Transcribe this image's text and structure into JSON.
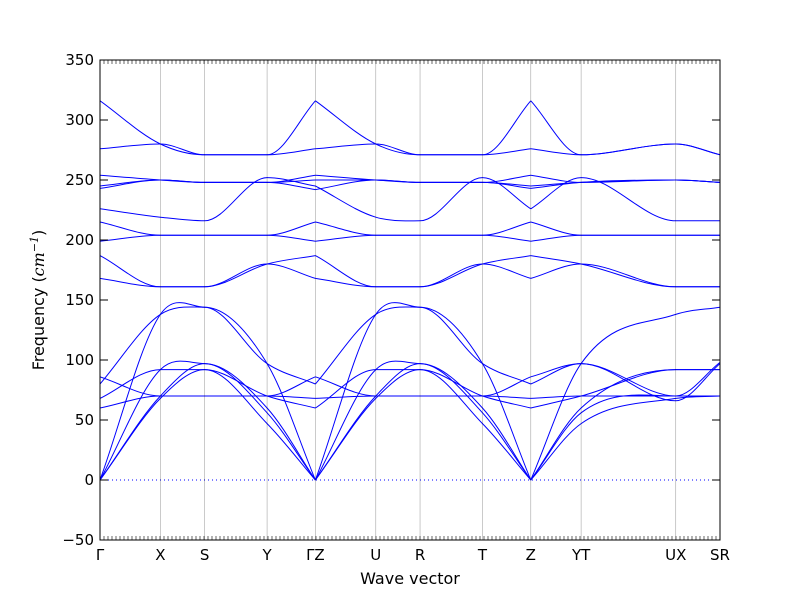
{
  "chart_data": {
    "type": "line",
    "xlabel": "Wave vector",
    "ylabel": "Frequency (cm⁻¹)",
    "ylabel_prefix": "Frequency (",
    "ylabel_unit": "cm",
    "ylabel_exp": "−1",
    "ylabel_suffix": ")",
    "xlim": [
      0,
      1
    ],
    "ylim": [
      -50,
      350
    ],
    "yticks": [
      -50,
      0,
      50,
      100,
      150,
      200,
      250,
      300,
      350
    ],
    "ytick_labels": [
      "−50",
      "0",
      "50",
      "100",
      "150",
      "200",
      "250",
      "300",
      "350"
    ],
    "xticks": [
      {
        "label": "Γ",
        "x": 0.0
      },
      {
        "label": "X",
        "x": 0.0974
      },
      {
        "label": "S",
        "x": 0.1688
      },
      {
        "label": "Y",
        "x": 0.2695
      },
      {
        "label": "ΓZ",
        "x": 0.3474
      },
      {
        "label": "U",
        "x": 0.4448
      },
      {
        "label": "R",
        "x": 0.5162
      },
      {
        "label": "T",
        "x": 0.6169
      },
      {
        "label": "Z",
        "x": 0.6948
      },
      {
        "label": "YT",
        "x": 0.776
      },
      {
        "label": "UX",
        "x": 0.9286
      },
      {
        "label": "SR",
        "x": 1.0
      }
    ],
    "zero_line": {
      "y": 0,
      "style": "dotted"
    },
    "line_color": "#0000ff",
    "grid": false,
    "series": [
      {
        "x": [
          0.0,
          0.0974,
          0.1688,
          0.2695,
          0.3474
        ],
        "y": [
          0,
          68,
          92,
          47,
          0
        ]
      },
      {
        "x": [
          0.0,
          0.0974,
          0.1688,
          0.2695,
          0.3474
        ],
        "y": [
          0,
          70,
          97,
          56,
          0
        ]
      },
      {
        "x": [
          0.0,
          0.0974,
          0.1688,
          0.2695,
          0.3474
        ],
        "y": [
          0,
          92,
          97,
          60,
          0
        ]
      },
      {
        "x": [
          0.0,
          0.0974,
          0.1688,
          0.2695,
          0.3474
        ],
        "y": [
          0,
          138,
          144,
          97,
          0
        ]
      },
      {
        "x": [
          0.0,
          0.0974,
          0.1688,
          0.2695,
          0.3474
        ],
        "y": [
          60,
          70,
          70,
          70,
          68
        ]
      },
      {
        "x": [
          0.0,
          0.0974,
          0.1688,
          0.2695,
          0.3474
        ],
        "y": [
          68,
          92,
          92,
          70,
          60
        ]
      },
      {
        "x": [
          0.0,
          0.0974,
          0.1688,
          0.2695,
          0.3474
        ],
        "y": [
          80,
          138,
          144,
          97,
          80
        ]
      },
      {
        "x": [
          0.0,
          0.0974,
          0.1688,
          0.2695,
          0.3474
        ],
        "y": [
          86,
          70,
          70,
          70,
          86
        ]
      },
      {
        "x": [
          0.0,
          0.0974,
          0.1688,
          0.2695,
          0.3474
        ],
        "y": [
          168,
          161,
          161,
          180,
          168
        ]
      },
      {
        "x": [
          0.0,
          0.0974,
          0.1688,
          0.2695,
          0.3474
        ],
        "y": [
          187,
          161,
          161,
          180,
          187
        ]
      },
      {
        "x": [
          0.0,
          0.0974,
          0.1688,
          0.2695,
          0.3474
        ],
        "y": [
          199,
          204,
          204,
          204,
          199
        ]
      },
      {
        "x": [
          0.0,
          0.0974,
          0.1688,
          0.2695,
          0.3474
        ],
        "y": [
          215,
          204,
          204,
          204,
          215
        ]
      },
      {
        "x": [
          0.0,
          0.0974,
          0.1688,
          0.2695,
          0.3474
        ],
        "y": [
          226,
          219,
          216,
          252,
          245
        ]
      },
      {
        "x": [
          0.0,
          0.0974,
          0.1688,
          0.2695,
          0.3474
        ],
        "y": [
          243,
          250,
          248,
          248,
          242
        ]
      },
      {
        "x": [
          0.0,
          0.0974,
          0.1688,
          0.2695,
          0.3474
        ],
        "y": [
          245,
          250,
          248,
          248,
          250
        ]
      },
      {
        "x": [
          0.0,
          0.0974,
          0.1688,
          0.2695,
          0.3474
        ],
        "y": [
          254,
          250,
          248,
          248,
          254
        ]
      },
      {
        "x": [
          0.0,
          0.0974,
          0.1688,
          0.2695,
          0.3474
        ],
        "y": [
          276,
          280,
          271,
          271,
          276
        ]
      },
      {
        "x": [
          0.0,
          0.0974,
          0.1688,
          0.2695,
          0.3474
        ],
        "y": [
          316,
          280,
          271,
          271,
          316
        ]
      },
      {
        "x": [
          0.3474,
          0.4448,
          0.5162,
          0.6169,
          0.6948
        ],
        "y": [
          0,
          68,
          92,
          47,
          0
        ]
      },
      {
        "x": [
          0.3474,
          0.4448,
          0.5162,
          0.6169,
          0.6948
        ],
        "y": [
          0,
          70,
          97,
          56,
          0
        ]
      },
      {
        "x": [
          0.3474,
          0.4448,
          0.5162,
          0.6169,
          0.6948
        ],
        "y": [
          0,
          92,
          97,
          60,
          0
        ]
      },
      {
        "x": [
          0.3474,
          0.4448,
          0.5162,
          0.6169,
          0.6948
        ],
        "y": [
          0,
          138,
          144,
          97,
          0
        ]
      },
      {
        "x": [
          0.3474,
          0.4448,
          0.5162,
          0.6169,
          0.6948
        ],
        "y": [
          68,
          70,
          70,
          70,
          68
        ]
      },
      {
        "x": [
          0.3474,
          0.4448,
          0.5162,
          0.6169,
          0.6948
        ],
        "y": [
          60,
          92,
          92,
          70,
          60
        ]
      },
      {
        "x": [
          0.3474,
          0.4448,
          0.5162,
          0.6169,
          0.6948
        ],
        "y": [
          80,
          138,
          144,
          97,
          80
        ]
      },
      {
        "x": [
          0.3474,
          0.4448,
          0.5162,
          0.6169,
          0.6948
        ],
        "y": [
          86,
          70,
          70,
          70,
          86
        ]
      },
      {
        "x": [
          0.3474,
          0.4448,
          0.5162,
          0.6169,
          0.6948
        ],
        "y": [
          168,
          161,
          161,
          180,
          168
        ]
      },
      {
        "x": [
          0.3474,
          0.4448,
          0.5162,
          0.6169,
          0.6948
        ],
        "y": [
          187,
          161,
          161,
          180,
          187
        ]
      },
      {
        "x": [
          0.3474,
          0.4448,
          0.5162,
          0.6169,
          0.6948
        ],
        "y": [
          199,
          204,
          204,
          204,
          199
        ]
      },
      {
        "x": [
          0.3474,
          0.4448,
          0.5162,
          0.6169,
          0.6948
        ],
        "y": [
          215,
          204,
          204,
          204,
          215
        ]
      },
      {
        "x": [
          0.3474,
          0.4448,
          0.5162,
          0.6169,
          0.6948
        ],
        "y": [
          245,
          219,
          216,
          252,
          226
        ]
      },
      {
        "x": [
          0.3474,
          0.4448,
          0.5162,
          0.6169,
          0.6948
        ],
        "y": [
          242,
          250,
          248,
          248,
          243
        ]
      },
      {
        "x": [
          0.3474,
          0.4448,
          0.5162,
          0.6169,
          0.6948
        ],
        "y": [
          250,
          250,
          248,
          248,
          245
        ]
      },
      {
        "x": [
          0.3474,
          0.4448,
          0.5162,
          0.6169,
          0.6948
        ],
        "y": [
          254,
          250,
          248,
          248,
          254
        ]
      },
      {
        "x": [
          0.3474,
          0.4448,
          0.5162,
          0.6169,
          0.6948
        ],
        "y": [
          276,
          280,
          271,
          271,
          276
        ]
      },
      {
        "x": [
          0.3474,
          0.4448,
          0.5162,
          0.6169,
          0.6948
        ],
        "y": [
          316,
          280,
          271,
          271,
          316
        ]
      },
      {
        "x": [
          0.6948,
          0.776,
          0.9286,
          1.0
        ],
        "y": [
          0,
          47,
          68,
          70
        ]
      },
      {
        "x": [
          0.6948,
          0.776,
          0.9286,
          1.0
        ],
        "y": [
          0,
          56,
          70,
          70
        ]
      },
      {
        "x": [
          0.6948,
          0.776,
          0.9286,
          1.0
        ],
        "y": [
          0,
          60,
          92,
          92
        ]
      },
      {
        "x": [
          0.6948,
          0.776,
          0.9286,
          1.0
        ],
        "y": [
          0,
          97,
          138,
          144
        ]
      },
      {
        "x": [
          0.6948,
          0.776,
          0.9286,
          1.0
        ],
        "y": [
          68,
          70,
          70,
          70
        ]
      },
      {
        "x": [
          0.6948,
          0.776,
          0.9286,
          1.0
        ],
        "y": [
          60,
          70,
          92,
          92
        ]
      },
      {
        "x": [
          0.6948,
          0.776,
          0.9286,
          1.0
        ],
        "y": [
          80,
          97,
          70,
          98
        ]
      },
      {
        "x": [
          0.6948,
          0.776,
          0.9286,
          1.0
        ],
        "y": [
          86,
          97,
          66,
          97
        ]
      },
      {
        "x": [
          0.6948,
          0.776,
          0.9286,
          1.0
        ],
        "y": [
          168,
          180,
          161,
          161
        ]
      },
      {
        "x": [
          0.6948,
          0.776,
          0.9286,
          1.0
        ],
        "y": [
          187,
          180,
          161,
          161
        ]
      },
      {
        "x": [
          0.6948,
          0.776,
          0.9286,
          1.0
        ],
        "y": [
          199,
          204,
          204,
          204
        ]
      },
      {
        "x": [
          0.6948,
          0.776,
          0.9286,
          1.0
        ],
        "y": [
          215,
          204,
          204,
          204
        ]
      },
      {
        "x": [
          0.6948,
          0.776,
          0.9286,
          1.0
        ],
        "y": [
          226,
          252,
          216,
          216
        ]
      },
      {
        "x": [
          0.6948,
          0.776,
          0.9286,
          1.0
        ],
        "y": [
          243,
          248,
          250,
          248
        ]
      },
      {
        "x": [
          0.6948,
          0.776,
          0.9286,
          1.0
        ],
        "y": [
          245,
          248,
          250,
          248
        ]
      },
      {
        "x": [
          0.6948,
          0.776,
          0.9286,
          1.0
        ],
        "y": [
          254,
          248,
          250,
          248
        ]
      },
      {
        "x": [
          0.6948,
          0.776,
          0.9286,
          1.0
        ],
        "y": [
          276,
          271,
          280,
          271
        ]
      },
      {
        "x": [
          0.6948,
          0.776,
          0.9286,
          1.0
        ],
        "y": [
          316,
          271,
          280,
          271
        ]
      }
    ]
  }
}
